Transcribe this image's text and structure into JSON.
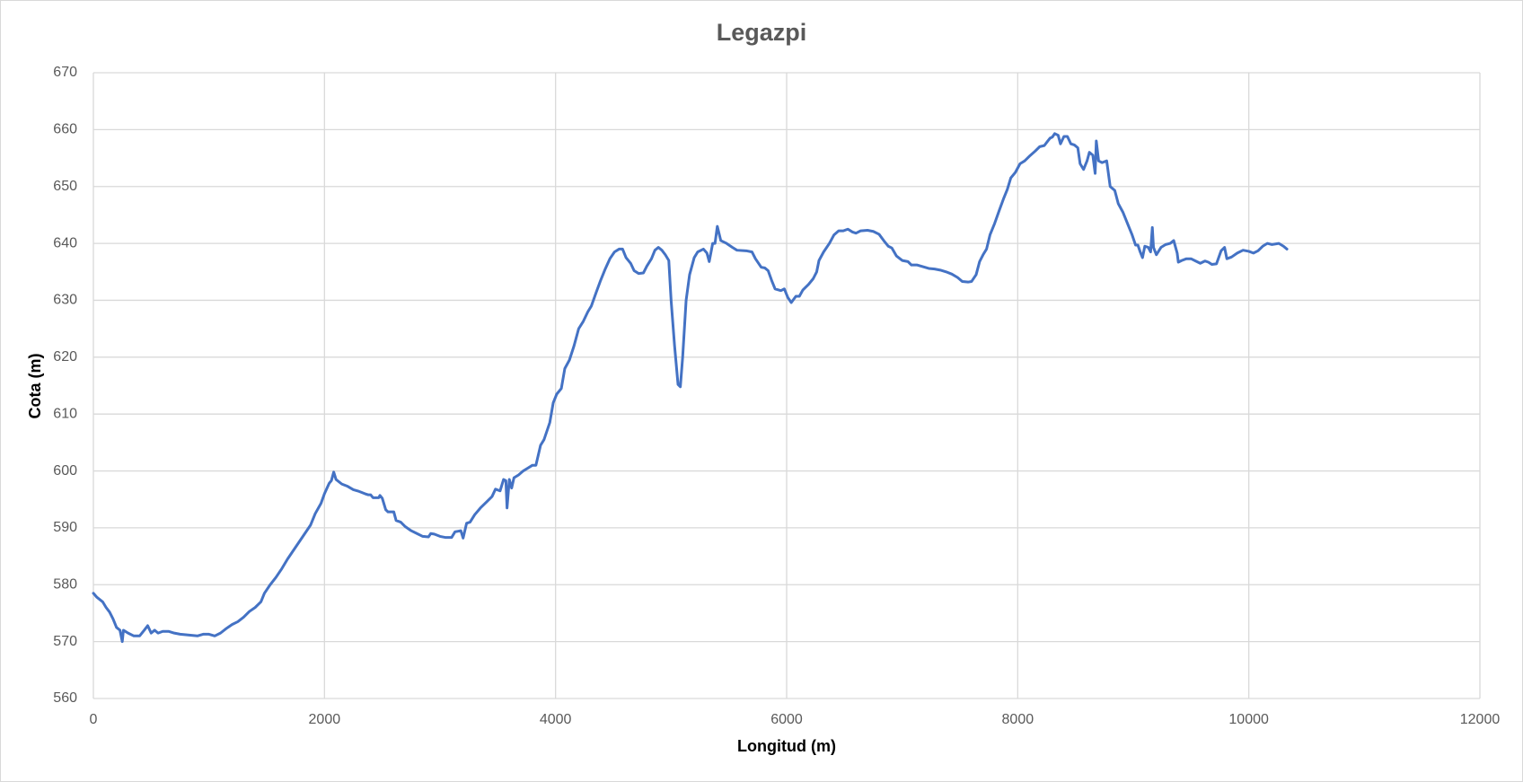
{
  "chart_data": {
    "type": "line",
    "title": "Legazpi",
    "x_label": "Longitud (m)",
    "y_label": "Cota (m)",
    "xlim": [
      0,
      12000
    ],
    "xticks": [
      0,
      2000,
      4000,
      6000,
      8000,
      10000,
      12000
    ],
    "ylim": [
      560,
      670
    ],
    "yticks": [
      560,
      570,
      580,
      590,
      600,
      610,
      620,
      630,
      640,
      650,
      660,
      670
    ],
    "grid": true,
    "x": [
      0,
      30,
      80,
      110,
      140,
      170,
      200,
      230,
      250,
      260,
      300,
      350,
      400,
      440,
      470,
      500,
      530,
      560,
      600,
      650,
      700,
      750,
      800,
      850,
      900,
      950,
      1000,
      1050,
      1100,
      1150,
      1200,
      1250,
      1300,
      1350,
      1400,
      1450,
      1480,
      1530,
      1580,
      1630,
      1680,
      1730,
      1780,
      1830,
      1880,
      1920,
      1970,
      2000,
      2040,
      2060,
      2080,
      2100,
      2150,
      2200,
      2250,
      2300,
      2350,
      2380,
      2400,
      2420,
      2470,
      2480,
      2500,
      2530,
      2550,
      2600,
      2620,
      2660,
      2700,
      2750,
      2800,
      2850,
      2900,
      2920,
      2950,
      3000,
      3050,
      3100,
      3130,
      3180,
      3200,
      3230,
      3260,
      3300,
      3350,
      3400,
      3450,
      3480,
      3520,
      3550,
      3570,
      3580,
      3600,
      3620,
      3640,
      3680,
      3720,
      3760,
      3800,
      3830,
      3870,
      3900,
      3950,
      3980,
      4010,
      4050,
      4080,
      4120,
      4160,
      4200,
      4240,
      4280,
      4310,
      4350,
      4390,
      4430,
      4470,
      4510,
      4550,
      4580,
      4610,
      4650,
      4680,
      4720,
      4760,
      4790,
      4830,
      4860,
      4890,
      4920,
      4950,
      4980,
      5000,
      5030,
      5060,
      5080,
      5100,
      5130,
      5160,
      5200,
      5230,
      5280,
      5310,
      5330,
      5360,
      5380,
      5400,
      5430,
      5480,
      5530,
      5570,
      5650,
      5700,
      5730,
      5780,
      5810,
      5840,
      5870,
      5900,
      5950,
      5980,
      6010,
      6040,
      6080,
      6110,
      6140,
      6190,
      6230,
      6260,
      6280,
      6320,
      6370,
      6410,
      6450,
      6490,
      6530,
      6570,
      6600,
      6640,
      6700,
      6750,
      6800,
      6840,
      6880,
      6910,
      6950,
      7000,
      7050,
      7080,
      7130,
      7180,
      7230,
      7280,
      7330,
      7380,
      7430,
      7480,
      7520,
      7570,
      7600,
      7640,
      7670,
      7700,
      7730,
      7760,
      7800,
      7840,
      7880,
      7910,
      7940,
      7980,
      8020,
      8060,
      8100,
      8150,
      8190,
      8230,
      8260,
      8280,
      8300,
      8320,
      8350,
      8370,
      8400,
      8430,
      8460,
      8490,
      8520,
      8540,
      8570,
      8600,
      8620,
      8650,
      8670,
      8680,
      8700,
      8730,
      8770,
      8800,
      8840,
      8870,
      8910,
      8950,
      8990,
      9020,
      9040,
      9060,
      9080,
      9100,
      9130,
      9150,
      9165,
      9175,
      9200,
      9240,
      9280,
      9320,
      9350,
      9380,
      9390,
      9420,
      9460,
      9500,
      9540,
      9580,
      9620,
      9650,
      9680,
      9720,
      9760,
      9790,
      9810,
      9850,
      9900,
      9950,
      10000,
      10040,
      10080,
      10120,
      10160,
      10200,
      10260,
      10300,
      10330
    ],
    "series": [
      {
        "name": "Cota",
        "color": "#4472c4",
        "values": [
          578.5,
          577.8,
          577,
          576,
          575.2,
          574,
          572.5,
          572,
          570,
          572,
          571.5,
          571,
          571,
          572,
          572.8,
          571.5,
          572,
          571.5,
          571.8,
          571.8,
          571.5,
          571.3,
          571.2,
          571.1,
          571,
          571.3,
          571.3,
          571,
          571.5,
          572.3,
          573,
          573.5,
          574.3,
          575.3,
          576,
          577,
          578.5,
          580,
          581.3,
          582.8,
          584.5,
          586,
          587.5,
          589,
          590.5,
          592.5,
          594.3,
          596,
          597.8,
          598.3,
          599.8,
          598.5,
          597.7,
          597.3,
          596.7,
          596.4,
          596,
          595.8,
          595.8,
          595.3,
          595.3,
          595.7,
          595.2,
          593.2,
          592.8,
          592.8,
          591.3,
          591,
          590.2,
          589.5,
          589,
          588.5,
          588.4,
          589,
          588.9,
          588.5,
          588.3,
          588.3,
          589.3,
          589.5,
          588.2,
          590.8,
          591,
          592.3,
          593.5,
          594.5,
          595.5,
          596.8,
          596.5,
          598.5,
          598.3,
          593.5,
          598.5,
          597,
          598.8,
          599.3,
          600,
          600.5,
          601,
          601,
          604.5,
          605.5,
          608.5,
          612,
          613.5,
          614.5,
          618,
          619.5,
          622,
          625,
          626.3,
          628,
          629,
          631.3,
          633.5,
          635.5,
          637.3,
          638.5,
          639,
          639,
          637.5,
          636.5,
          635.2,
          634.7,
          634.8,
          636,
          637.3,
          638.8,
          639.3,
          638.8,
          638,
          637,
          630,
          622,
          615.2,
          614.8,
          620,
          630,
          634.5,
          637.5,
          638.5,
          639,
          638.3,
          636.8,
          640,
          640,
          643,
          640.5,
          640,
          639.3,
          638.8,
          638.7,
          638.5,
          637.3,
          635.8,
          635.7,
          635.2,
          633.5,
          632,
          631.7,
          632,
          630.5,
          629.6,
          630.7,
          630.7,
          631.8,
          632.8,
          633.8,
          635,
          637,
          638.5,
          640,
          641.5,
          642.2,
          642.2,
          642.5,
          642,
          641.8,
          642.2,
          642.3,
          642.1,
          641.6,
          640.5,
          639.5,
          639.2,
          637.8,
          637,
          636.8,
          636.2,
          636.2,
          635.9,
          635.6,
          635.5,
          635.3,
          635,
          634.6,
          634,
          633.3,
          633.2,
          633.3,
          634.5,
          636.8,
          638,
          639,
          641.5,
          643.5,
          645.8,
          648,
          649.5,
          651.5,
          652.5,
          654,
          654.5,
          655.3,
          656.2,
          657,
          657.2,
          658,
          658.5,
          658.7,
          659.3,
          659,
          657.5,
          658.8,
          658.8,
          657.5,
          657.3,
          656.8,
          654,
          653,
          654.5,
          656,
          655.5,
          652.3,
          658,
          654.5,
          654.2,
          654.5,
          650,
          649.3,
          647,
          645.5,
          643.5,
          641.5,
          639.7,
          639.7,
          638.5,
          637.5,
          639.5,
          639.3,
          638.5,
          642.8,
          639.3,
          638,
          639.3,
          639.8,
          640,
          640.5,
          638.3,
          636.7,
          637,
          637.3,
          637.3,
          636.9,
          636.5,
          636.9,
          636.7,
          636.3,
          636.4,
          638.7,
          639.3,
          637.3,
          637.6,
          638.3,
          638.8,
          638.6,
          638.3,
          638.7,
          639.5,
          640,
          639.8,
          640,
          639.5,
          639
        ]
      }
    ]
  }
}
